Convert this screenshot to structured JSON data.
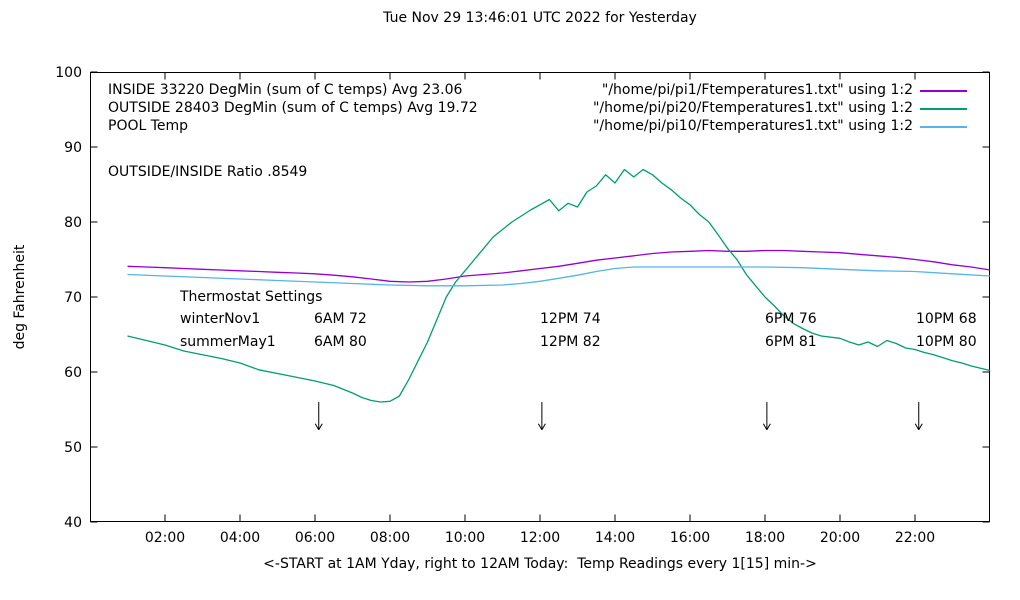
{
  "title": "Tue Nov 29 13:46:01 UTC 2022 for Yesterday",
  "legend": {
    "rows": [
      {
        "left": "INSIDE 33220 DegMin (sum of C temps) Avg 23.06",
        "file": "\"/home/pi/pi1/Ftemperatures1.txt\" using 1:2"
      },
      {
        "left": "OUTSIDE 28403 DegMin (sum of C temps) Avg 19.72",
        "file": "\"/home/pi/pi20/Ftemperatures1.txt\" using 1:2"
      },
      {
        "left": "POOL Temp",
        "file": "\"/home/pi/pi10/Ftemperatures1.txt\" using 1:2"
      }
    ],
    "ratio": "OUTSIDE/INSIDE Ratio .8549"
  },
  "thermostat": {
    "heading": "Thermostat Settings",
    "rows": [
      [
        "winterNov1",
        "6AM 72",
        "12PM 74",
        "6PM 76",
        "10PM 68"
      ],
      [
        "summerMay1",
        "6AM 80",
        "12PM 82",
        "6PM 81",
        "10PM 80"
      ]
    ]
  },
  "chart_data": {
    "type": "line",
    "title": "Tue Nov 29 13:46:01 UTC 2022 for Yesterday",
    "xlabel": "<-START at 1AM Yday, right to 12AM Today:  Temp Readings every 1[15] min->",
    "ylabel": "deg Fahrenheit",
    "xlim": [
      0,
      24
    ],
    "ylim": [
      40,
      100
    ],
    "grid": false,
    "legend_position": "top-inside",
    "x_ticks": [
      {
        "v": 2,
        "label": "02:00"
      },
      {
        "v": 4,
        "label": "04:00"
      },
      {
        "v": 6,
        "label": "06:00"
      },
      {
        "v": 8,
        "label": "08:00"
      },
      {
        "v": 10,
        "label": "10:00"
      },
      {
        "v": 12,
        "label": "12:00"
      },
      {
        "v": 14,
        "label": "14:00"
      },
      {
        "v": 16,
        "label": "16:00"
      },
      {
        "v": 18,
        "label": "18:00"
      },
      {
        "v": 20,
        "label": "20:00"
      },
      {
        "v": 22,
        "label": "22:00"
      }
    ],
    "y_ticks": [
      40,
      50,
      60,
      70,
      80,
      90,
      100
    ],
    "arrows": {
      "x": [
        6.1,
        12.05,
        18.05,
        22.1
      ],
      "y_start": 56,
      "y_end": 52.3
    },
    "series": [
      {
        "name": "INSIDE",
        "color": "#9400d3",
        "points": [
          [
            1,
            74.1
          ],
          [
            1.5,
            74
          ],
          [
            2,
            73.9
          ],
          [
            2.5,
            73.8
          ],
          [
            3,
            73.7
          ],
          [
            3.5,
            73.6
          ],
          [
            4,
            73.5
          ],
          [
            4.5,
            73.4
          ],
          [
            5,
            73.3
          ],
          [
            5.5,
            73.2
          ],
          [
            6,
            73.1
          ],
          [
            6.5,
            72.9
          ],
          [
            7,
            72.7
          ],
          [
            7.5,
            72.4
          ],
          [
            8,
            72.1
          ],
          [
            8.5,
            72
          ],
          [
            9,
            72.1
          ],
          [
            9.5,
            72.4
          ],
          [
            10,
            72.8
          ],
          [
            10.5,
            73
          ],
          [
            11,
            73.2
          ],
          [
            11.5,
            73.5
          ],
          [
            12,
            73.8
          ],
          [
            12.5,
            74.1
          ],
          [
            13,
            74.5
          ],
          [
            13.5,
            74.9
          ],
          [
            14,
            75.2
          ],
          [
            14.5,
            75.5
          ],
          [
            15,
            75.8
          ],
          [
            15.5,
            76
          ],
          [
            16,
            76.1
          ],
          [
            16.5,
            76.2
          ],
          [
            17,
            76.1
          ],
          [
            17.5,
            76.1
          ],
          [
            18,
            76.2
          ],
          [
            18.5,
            76.2
          ],
          [
            19,
            76.1
          ],
          [
            19.5,
            76
          ],
          [
            20,
            75.9
          ],
          [
            20.5,
            75.7
          ],
          [
            21,
            75.5
          ],
          [
            21.5,
            75.3
          ],
          [
            22,
            75
          ],
          [
            22.5,
            74.7
          ],
          [
            23,
            74.3
          ],
          [
            23.5,
            74
          ],
          [
            24,
            73.6
          ]
        ]
      },
      {
        "name": "OUTSIDE",
        "color": "#009e73",
        "points": [
          [
            1,
            64.8
          ],
          [
            1.5,
            64.2
          ],
          [
            2,
            63.6
          ],
          [
            2.5,
            62.8
          ],
          [
            3,
            62.3
          ],
          [
            3.5,
            61.8
          ],
          [
            4,
            61.2
          ],
          [
            4.5,
            60.3
          ],
          [
            5,
            59.8
          ],
          [
            5.5,
            59.3
          ],
          [
            6,
            58.8
          ],
          [
            6.5,
            58.2
          ],
          [
            7,
            57.2
          ],
          [
            7.25,
            56.6
          ],
          [
            7.5,
            56.2
          ],
          [
            7.75,
            56
          ],
          [
            8,
            56.1
          ],
          [
            8.25,
            56.8
          ],
          [
            8.5,
            59
          ],
          [
            8.75,
            61.5
          ],
          [
            9,
            64
          ],
          [
            9.25,
            67
          ],
          [
            9.5,
            70
          ],
          [
            9.75,
            72
          ],
          [
            10,
            73.5
          ],
          [
            10.25,
            75
          ],
          [
            10.5,
            76.5
          ],
          [
            10.75,
            78
          ],
          [
            11,
            79
          ],
          [
            11.25,
            80
          ],
          [
            11.5,
            80.8
          ],
          [
            11.75,
            81.6
          ],
          [
            12,
            82.3
          ],
          [
            12.25,
            83
          ],
          [
            12.5,
            81.5
          ],
          [
            12.75,
            82.5
          ],
          [
            13,
            82
          ],
          [
            13.25,
            84
          ],
          [
            13.5,
            84.8
          ],
          [
            13.75,
            86.3
          ],
          [
            14,
            85.2
          ],
          [
            14.25,
            87
          ],
          [
            14.5,
            86
          ],
          [
            14.75,
            87
          ],
          [
            15,
            86.3
          ],
          [
            15.25,
            85.2
          ],
          [
            15.5,
            84.3
          ],
          [
            15.75,
            83.2
          ],
          [
            16,
            82.3
          ],
          [
            16.25,
            81
          ],
          [
            16.5,
            80
          ],
          [
            16.75,
            78.3
          ],
          [
            17,
            76.5
          ],
          [
            17.25,
            75
          ],
          [
            17.5,
            73
          ],
          [
            17.75,
            71.5
          ],
          [
            18,
            70
          ],
          [
            18.25,
            68.8
          ],
          [
            18.5,
            67.5
          ],
          [
            18.75,
            66.5
          ],
          [
            19,
            65.8
          ],
          [
            19.25,
            65.2
          ],
          [
            19.5,
            64.8
          ],
          [
            20,
            64.5
          ],
          [
            20.25,
            64
          ],
          [
            20.5,
            63.6
          ],
          [
            20.75,
            64
          ],
          [
            21,
            63.4
          ],
          [
            21.25,
            64.2
          ],
          [
            21.5,
            63.8
          ],
          [
            21.75,
            63.2
          ],
          [
            22,
            63
          ],
          [
            22.25,
            62.6
          ],
          [
            22.5,
            62.3
          ],
          [
            23,
            61.5
          ],
          [
            23.25,
            61.2
          ],
          [
            23.5,
            60.8
          ],
          [
            23.75,
            60.5
          ],
          [
            24,
            60.2
          ]
        ]
      },
      {
        "name": "POOL",
        "color": "#56b4e9",
        "points": [
          [
            1,
            73
          ],
          [
            2,
            72.8
          ],
          [
            3,
            72.6
          ],
          [
            4,
            72.4
          ],
          [
            5,
            72.2
          ],
          [
            6,
            72
          ],
          [
            7,
            71.8
          ],
          [
            8,
            71.6
          ],
          [
            9,
            71.5
          ],
          [
            10,
            71.5
          ],
          [
            11,
            71.6
          ],
          [
            11.5,
            71.8
          ],
          [
            12,
            72.1
          ],
          [
            12.5,
            72.5
          ],
          [
            13,
            72.9
          ],
          [
            13.5,
            73.4
          ],
          [
            14,
            73.8
          ],
          [
            14.5,
            74
          ],
          [
            15,
            74
          ],
          [
            16,
            74
          ],
          [
            17,
            74
          ],
          [
            18,
            74
          ],
          [
            19,
            73.9
          ],
          [
            20,
            73.7
          ],
          [
            21,
            73.5
          ],
          [
            22,
            73.4
          ],
          [
            23,
            73.1
          ],
          [
            24,
            72.8
          ]
        ]
      }
    ]
  }
}
